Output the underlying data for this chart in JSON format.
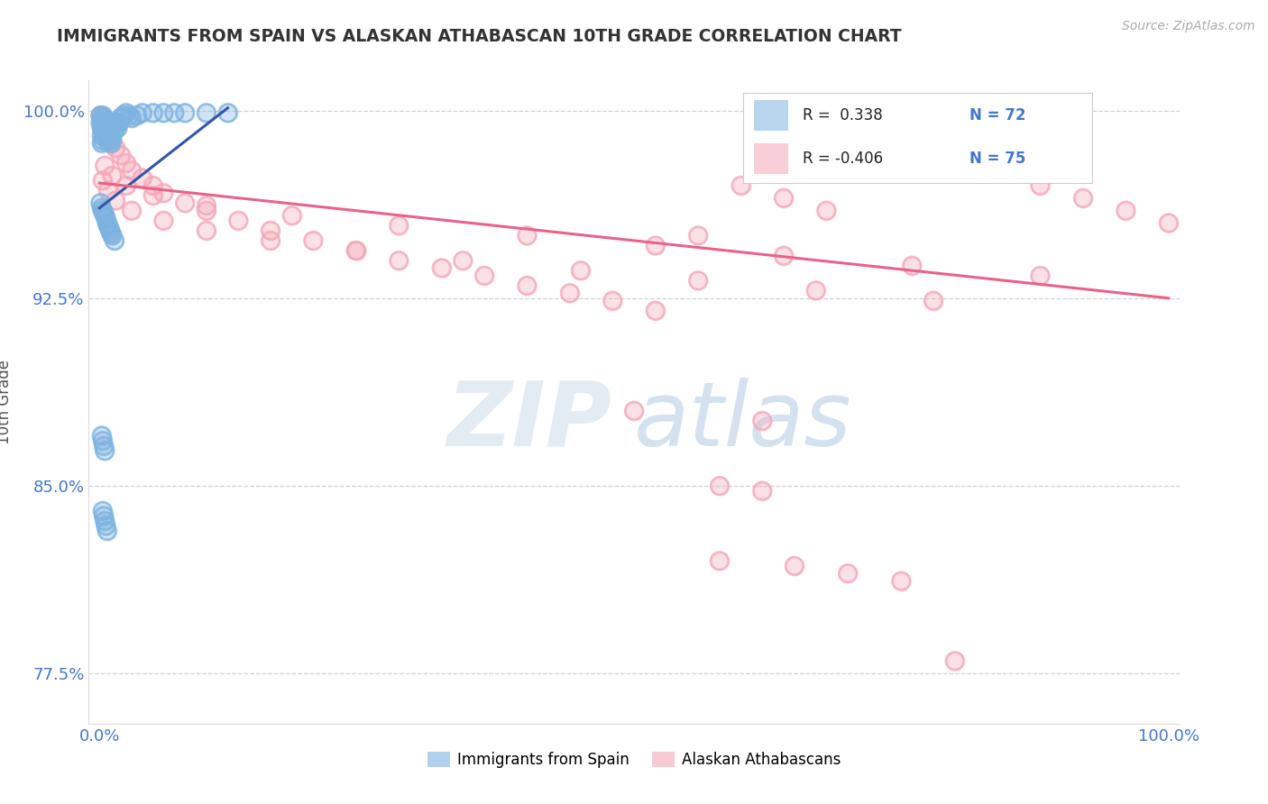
{
  "title": "IMMIGRANTS FROM SPAIN VS ALASKAN ATHABASCAN 10TH GRADE CORRELATION CHART",
  "source_text": "Source: ZipAtlas.com",
  "ylabel": "10th Grade",
  "watermark_zip": "ZIP",
  "watermark_atlas": "atlas",
  "xlim": [
    -0.01,
    1.01
  ],
  "ylim": [
    0.755,
    1.012
  ],
  "yticks": [
    0.775,
    0.85,
    0.925,
    1.0
  ],
  "ytick_labels": [
    "77.5%",
    "85.0%",
    "92.5%",
    "100.0%"
  ],
  "xticks": [
    0.0,
    1.0
  ],
  "xtick_labels": [
    "0.0%",
    "100.0%"
  ],
  "blue_color": "#7EB3E0",
  "pink_color": "#F4A8B8",
  "trend_blue": "#3355AA",
  "trend_pink": "#E8628A",
  "blue_scatter_x": [
    0.001,
    0.001,
    0.002,
    0.002,
    0.002,
    0.003,
    0.003,
    0.003,
    0.003,
    0.004,
    0.004,
    0.004,
    0.005,
    0.005,
    0.005,
    0.006,
    0.006,
    0.006,
    0.007,
    0.007,
    0.007,
    0.008,
    0.008,
    0.009,
    0.009,
    0.01,
    0.01,
    0.011,
    0.011,
    0.012,
    0.012,
    0.013,
    0.014,
    0.015,
    0.016,
    0.017,
    0.018,
    0.02,
    0.022,
    0.025,
    0.028,
    0.03,
    0.035,
    0.04,
    0.05,
    0.06,
    0.07,
    0.08,
    0.1,
    0.12,
    0.001,
    0.002,
    0.003,
    0.004,
    0.005,
    0.006,
    0.007,
    0.008,
    0.009,
    0.01,
    0.011,
    0.012,
    0.014,
    0.002,
    0.003,
    0.004,
    0.005,
    0.003,
    0.004,
    0.005,
    0.006,
    0.007
  ],
  "blue_scatter_y": [
    0.998,
    0.995,
    0.993,
    0.99,
    0.987,
    0.998,
    0.995,
    0.992,
    0.988,
    0.997,
    0.994,
    0.991,
    0.996,
    0.993,
    0.99,
    0.995,
    0.992,
    0.989,
    0.994,
    0.991,
    0.988,
    0.993,
    0.99,
    0.992,
    0.989,
    0.991,
    0.988,
    0.99,
    0.987,
    0.991,
    0.989,
    0.992,
    0.993,
    0.995,
    0.994,
    0.993,
    0.995,
    0.997,
    0.998,
    0.999,
    0.998,
    0.997,
    0.998,
    0.999,
    0.999,
    0.999,
    0.999,
    0.999,
    0.999,
    0.999,
    0.963,
    0.961,
    0.96,
    0.959,
    0.958,
    0.957,
    0.955,
    0.954,
    0.953,
    0.952,
    0.951,
    0.95,
    0.948,
    0.87,
    0.868,
    0.866,
    0.864,
    0.84,
    0.838,
    0.836,
    0.834,
    0.832
  ],
  "pink_scatter_x": [
    0.001,
    0.002,
    0.003,
    0.004,
    0.005,
    0.006,
    0.008,
    0.01,
    0.012,
    0.015,
    0.02,
    0.025,
    0.03,
    0.04,
    0.05,
    0.06,
    0.08,
    0.1,
    0.13,
    0.16,
    0.2,
    0.24,
    0.28,
    0.32,
    0.36,
    0.4,
    0.44,
    0.48,
    0.52,
    0.56,
    0.6,
    0.64,
    0.68,
    0.72,
    0.76,
    0.8,
    0.84,
    0.88,
    0.92,
    0.96,
    1.0,
    0.003,
    0.008,
    0.015,
    0.03,
    0.06,
    0.1,
    0.16,
    0.24,
    0.34,
    0.45,
    0.56,
    0.67,
    0.78,
    0.005,
    0.012,
    0.025,
    0.05,
    0.1,
    0.18,
    0.28,
    0.4,
    0.52,
    0.64,
    0.76,
    0.88,
    0.5,
    0.62,
    0.58,
    0.62,
    0.58,
    0.65,
    0.7,
    0.75,
    0.8
  ],
  "pink_scatter_y": [
    0.998,
    0.997,
    0.996,
    0.995,
    0.994,
    0.993,
    0.991,
    0.989,
    0.987,
    0.985,
    0.982,
    0.979,
    0.976,
    0.973,
    0.97,
    0.967,
    0.963,
    0.96,
    0.956,
    0.952,
    0.948,
    0.944,
    0.94,
    0.937,
    0.934,
    0.93,
    0.927,
    0.924,
    0.92,
    0.95,
    0.97,
    0.965,
    0.96,
    0.99,
    0.985,
    0.98,
    0.975,
    0.97,
    0.965,
    0.96,
    0.955,
    0.972,
    0.968,
    0.964,
    0.96,
    0.956,
    0.952,
    0.948,
    0.944,
    0.94,
    0.936,
    0.932,
    0.928,
    0.924,
    0.978,
    0.974,
    0.97,
    0.966,
    0.962,
    0.958,
    0.954,
    0.95,
    0.946,
    0.942,
    0.938,
    0.934,
    0.88,
    0.876,
    0.85,
    0.848,
    0.82,
    0.818,
    0.815,
    0.812,
    0.78
  ],
  "blue_trend_x": [
    0.0,
    0.12
  ],
  "blue_trend_y": [
    0.961,
    1.001
  ],
  "pink_trend_x": [
    0.0,
    1.0
  ],
  "pink_trend_y": [
    0.971,
    0.925
  ]
}
